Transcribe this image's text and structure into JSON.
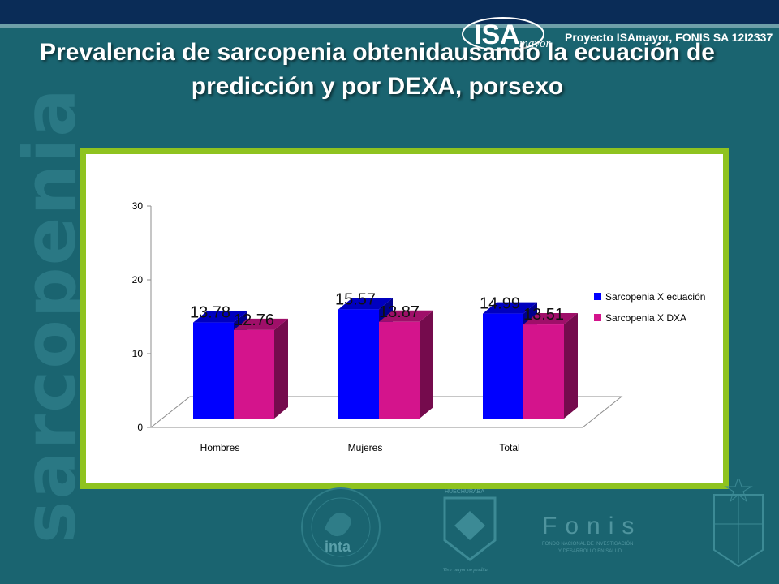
{
  "slide": {
    "title": "Prevalencia de sarcopenia obtenidausando la ecuación de predicción y por DEXA, porsexo",
    "side_watermark": "sarcopenia",
    "brand_logo_text": "ISA",
    "brand_logo_sub": "mayor",
    "brand_text": "Proyecto ISAmayor, FONIS SA 12I2337"
  },
  "footer": {
    "inta_label": "inta",
    "huechuraba_label": "HUECHURABA",
    "huechuraba_motto": "Vivir mayor no pesdita",
    "fonis_label": "Fonis",
    "fonis_sub1": "FONDO NACIONAL DE INVESTIGACIÓN",
    "fonis_sub2": "Y DESARROLLO EN SALUD"
  },
  "colors": {
    "background": "#1a6470",
    "top_bar": "#0a2c57",
    "frame": "#8fc31f",
    "series_1": "#0000ff",
    "series_2": "#d4148c"
  },
  "chart_data": {
    "type": "bar",
    "categories": [
      "Hombres",
      "Mujeres",
      "Total"
    ],
    "series": [
      {
        "name": "Sarcopenia X ecuación",
        "values": [
          13.78,
          15.57,
          14.99
        ],
        "color": "#0000ff"
      },
      {
        "name": "Sarcopenia X DXA",
        "values": [
          12.76,
          13.87,
          13.51
        ],
        "color": "#d4148c"
      }
    ],
    "data_labels": [
      [
        "13.78",
        "15.57",
        "14.99"
      ],
      [
        "12.76",
        "13.87",
        "13.51"
      ]
    ],
    "yticks": [
      0,
      10,
      20,
      30
    ],
    "ylim": [
      0,
      30
    ],
    "legend_position": "right",
    "grid": false,
    "style": "3d"
  }
}
